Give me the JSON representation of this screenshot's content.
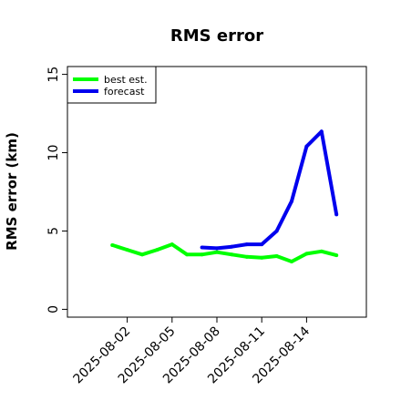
{
  "chart_data": {
    "type": "line",
    "title": "RMS error",
    "xlabel": "",
    "ylabel": "RMS error (km)",
    "ylim": [
      -0.5,
      15.5
    ],
    "xlim": [
      "2025-07-29",
      "2025-08-18"
    ],
    "yticks": [
      0,
      5,
      10,
      15
    ],
    "xticks": [
      "2025-08-02",
      "2025-08-05",
      "2025-08-08",
      "2025-08-11",
      "2025-08-14"
    ],
    "grid": false,
    "legend_position": "top-left",
    "series": [
      {
        "name": "best est.",
        "color": "#00ff00",
        "x": [
          "2025-08-01",
          "2025-08-02",
          "2025-08-03",
          "2025-08-04",
          "2025-08-05",
          "2025-08-06",
          "2025-08-07",
          "2025-08-08",
          "2025-08-09",
          "2025-08-10",
          "2025-08-11",
          "2025-08-12",
          "2025-08-13",
          "2025-08-14",
          "2025-08-15",
          "2025-08-16"
        ],
        "y": [
          4.1,
          3.8,
          3.5,
          3.8,
          4.15,
          3.5,
          3.5,
          3.65,
          3.5,
          3.35,
          3.3,
          3.4,
          3.05,
          3.55,
          3.7,
          3.45
        ]
      },
      {
        "name": "forecast",
        "color": "#0000ee",
        "x": [
          "2025-08-07",
          "2025-08-08",
          "2025-08-09",
          "2025-08-10",
          "2025-08-11",
          "2025-08-12",
          "2025-08-13",
          "2025-08-14",
          "2025-08-15",
          "2025-08-16"
        ],
        "y": [
          3.95,
          3.9,
          4.0,
          4.15,
          4.15,
          5.0,
          6.9,
          10.4,
          11.35,
          6.05
        ]
      }
    ]
  }
}
